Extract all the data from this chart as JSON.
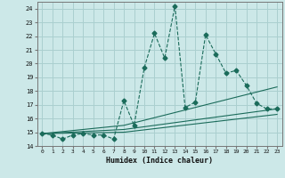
{
  "xlabel": "Humidex (Indice chaleur)",
  "background_color": "#cce8e8",
  "grid_color": "#aacfcf",
  "line_color": "#1a6b5a",
  "xlim": [
    -0.5,
    23.5
  ],
  "ylim": [
    14,
    24.5
  ],
  "yticks": [
    14,
    15,
    16,
    17,
    18,
    19,
    20,
    21,
    22,
    23,
    24
  ],
  "xticks": [
    0,
    1,
    2,
    3,
    4,
    5,
    6,
    7,
    8,
    9,
    10,
    11,
    12,
    13,
    14,
    15,
    16,
    17,
    18,
    19,
    20,
    21,
    22,
    23
  ],
  "series1_x": [
    0,
    1,
    2,
    3,
    4,
    5,
    6,
    7,
    8,
    9,
    10,
    11,
    12,
    13,
    14,
    15,
    16,
    17,
    18,
    19,
    20,
    21,
    22,
    23
  ],
  "series1_y": [
    14.9,
    14.8,
    14.5,
    14.8,
    14.9,
    14.8,
    14.8,
    14.5,
    17.3,
    15.5,
    19.7,
    22.2,
    20.4,
    24.2,
    16.8,
    17.2,
    22.1,
    20.7,
    19.3,
    19.5,
    18.4,
    17.1,
    16.7,
    16.7
  ],
  "series2_x": [
    0,
    8,
    23
  ],
  "series2_y": [
    14.9,
    15.5,
    18.3
  ],
  "series3_x": [
    0,
    8,
    23
  ],
  "series3_y": [
    14.9,
    15.2,
    16.7
  ],
  "series4_x": [
    0,
    8,
    23
  ],
  "series4_y": [
    14.9,
    15.0,
    16.3
  ]
}
